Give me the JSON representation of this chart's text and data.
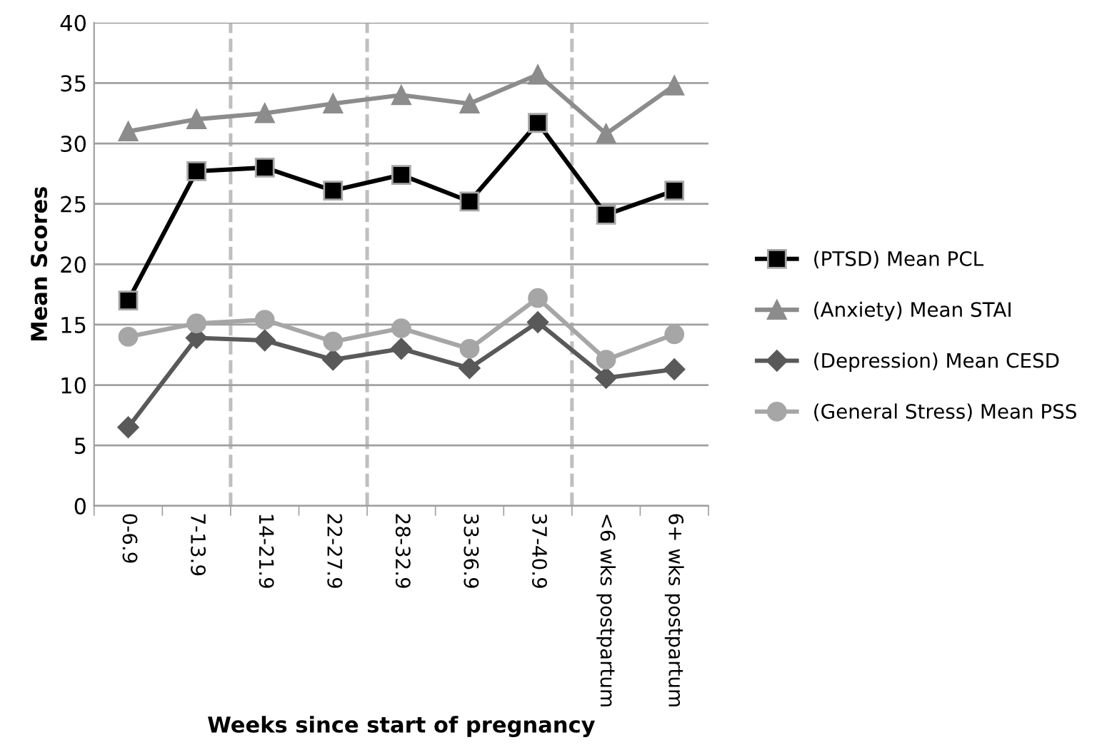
{
  "chart_data": {
    "type": "line",
    "xlabel": "Weeks since start of pregnancy",
    "ylabel": "Mean Scores",
    "categories": [
      "0-6.9",
      "7-13.9",
      "14-21.9",
      "22-27.9",
      "28-32.9",
      "33-36.9",
      "37-40.9",
      "<6 wks postpartum",
      "6+ wks postpartum"
    ],
    "series": [
      {
        "name": "(PTSD) Mean PCL",
        "color": "#000000",
        "marker": "square",
        "values": [
          17.0,
          27.7,
          28.0,
          26.1,
          27.4,
          25.2,
          31.7,
          24.1,
          26.1
        ]
      },
      {
        "name": "(Anxiety) Mean STAI",
        "color": "#8c8c8c",
        "marker": "triangle",
        "values": [
          31.0,
          32.0,
          32.5,
          33.3,
          34.0,
          33.3,
          35.7,
          30.8,
          34.8
        ]
      },
      {
        "name": "(Depression) Mean CESD",
        "color": "#595959",
        "marker": "diamond",
        "values": [
          6.5,
          13.9,
          13.7,
          12.1,
          13.0,
          11.4,
          15.2,
          10.6,
          11.3
        ]
      },
      {
        "name": "(General Stress) Mean PSS",
        "color": "#a6a6a6",
        "marker": "circle",
        "values": [
          14.0,
          15.1,
          15.4,
          13.6,
          14.7,
          13.0,
          17.2,
          12.1,
          14.2
        ]
      }
    ],
    "ylim": [
      0,
      40
    ],
    "yticks": [
      0,
      5,
      10,
      15,
      20,
      25,
      30,
      35,
      40
    ],
    "grid": "y",
    "legend": "right"
  }
}
